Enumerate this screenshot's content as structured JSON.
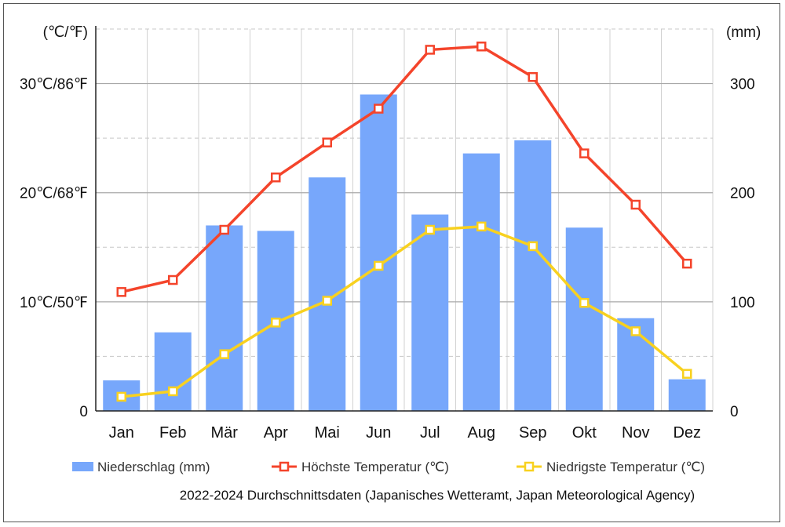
{
  "chart_data": {
    "type": "bar+line",
    "categories": [
      "Jan",
      "Feb",
      "Mär",
      "Apr",
      "Mai",
      "Jun",
      "Jul",
      "Aug",
      "Sep",
      "Okt",
      "Nov",
      "Dez"
    ],
    "left_axis": {
      "unit_label": "(℃/℉)",
      "ticks": [
        {
          "value": 0,
          "label": "0"
        },
        {
          "value": 10,
          "label": "10℃/50℉"
        },
        {
          "value": 20,
          "label": "20℃/68℉"
        },
        {
          "value": 30,
          "label": "30℃/86℉"
        }
      ],
      "ylim": [
        0,
        35
      ]
    },
    "right_axis": {
      "unit_label": "(mm)",
      "ticks": [
        {
          "value": 0,
          "label": "0"
        },
        {
          "value": 100,
          "label": "100"
        },
        {
          "value": 200,
          "label": "200"
        },
        {
          "value": 300,
          "label": "300"
        }
      ],
      "ylim": [
        0,
        350
      ]
    },
    "series": [
      {
        "name": "Niederschlag (mm)",
        "type": "bar",
        "axis": "right",
        "color": "#77a7fb",
        "values": [
          28,
          72,
          170,
          165,
          214,
          290,
          180,
          236,
          248,
          168,
          85,
          29
        ]
      },
      {
        "name": "Höchste Temperatur (℃)",
        "type": "line",
        "axis": "left",
        "color": "#f4442b",
        "values": [
          10.9,
          12.0,
          16.6,
          21.4,
          24.6,
          27.7,
          33.1,
          33.4,
          30.6,
          23.6,
          18.9,
          13.5
        ]
      },
      {
        "name": "Niedrigste Temperatur (℃)",
        "type": "line",
        "axis": "left",
        "color": "#f8d11f",
        "values": [
          1.3,
          1.8,
          5.2,
          8.1,
          10.1,
          13.3,
          16.6,
          16.9,
          15.1,
          9.9,
          7.3,
          3.4
        ]
      }
    ],
    "gridlines": {
      "solid_at_left": [
        0,
        10,
        20,
        30
      ],
      "dashed_at_right": [
        50,
        150,
        250,
        350
      ],
      "vertical": true
    },
    "legend_position": "bottom"
  },
  "source_note": "2022-2024 Durchschnittsdaten (Japanisches Wetteramt, Japan Meteorological Agency)"
}
